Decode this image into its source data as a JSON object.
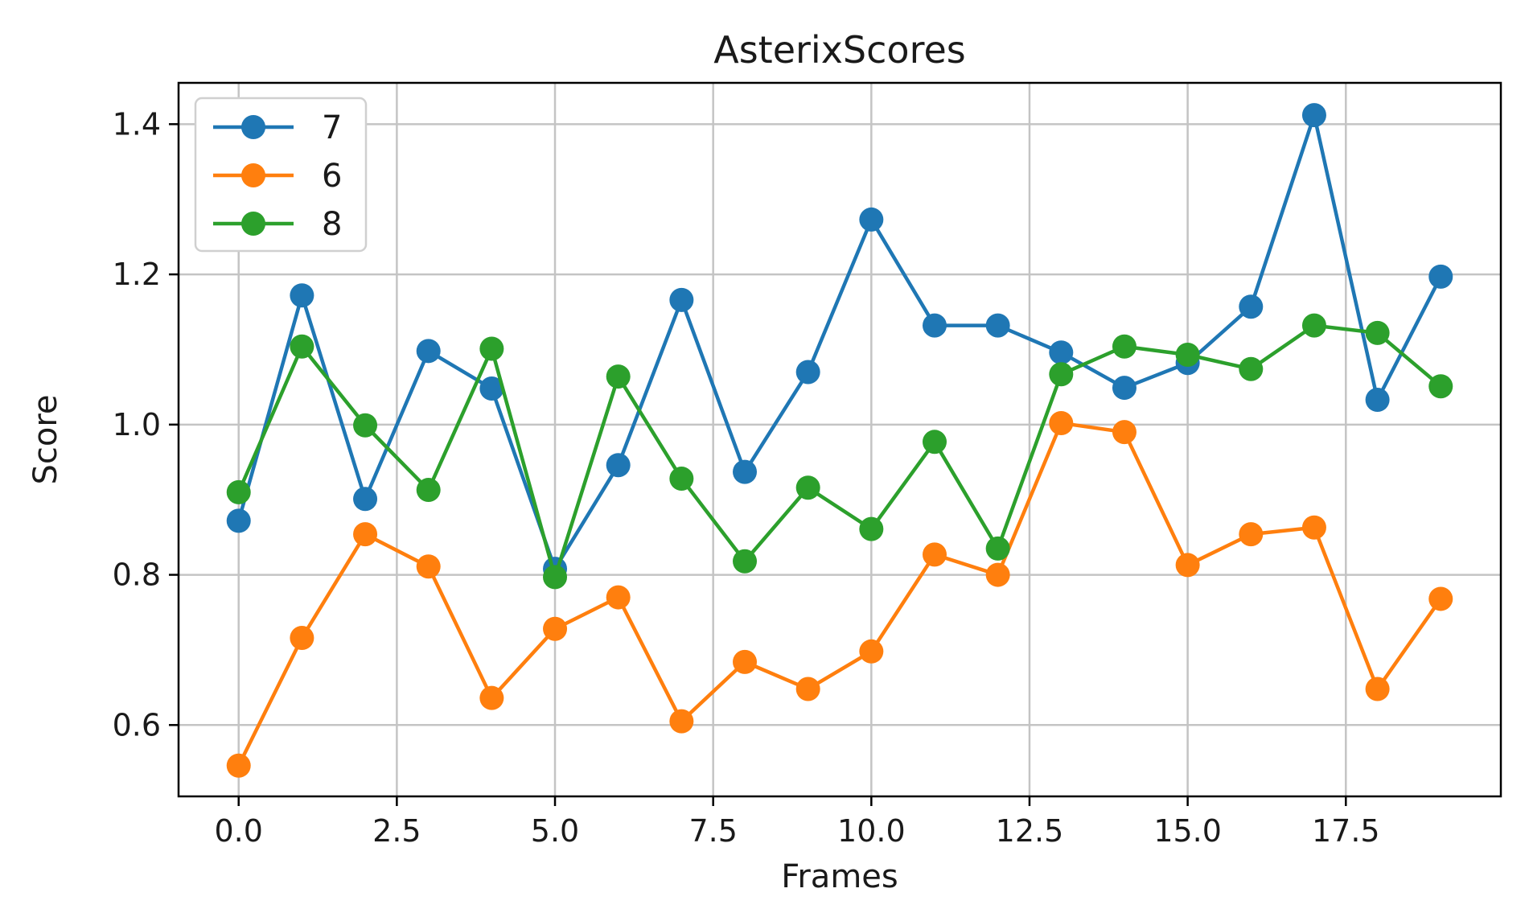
{
  "chart_data": {
    "type": "line",
    "title": "AsterixScores",
    "xlabel": "Frames",
    "ylabel": "Score",
    "xlim": [
      -0.95,
      19.95
    ],
    "ylim": [
      0.505,
      1.455
    ],
    "xticks": [
      0,
      2.5,
      5,
      7.5,
      10,
      12.5,
      15,
      17.5
    ],
    "xtick_labels": [
      "0.0",
      "2.5",
      "5.0",
      "7.5",
      "10.0",
      "12.5",
      "15.0",
      "17.5"
    ],
    "yticks": [
      0.6,
      0.8,
      1.0,
      1.2,
      1.4
    ],
    "ytick_labels": [
      "0.6",
      "0.8",
      "1.0",
      "1.2",
      "1.4"
    ],
    "grid": true,
    "legend_position": "top-left",
    "x": [
      0,
      1,
      2,
      3,
      4,
      5,
      6,
      7,
      8,
      9,
      10,
      11,
      12,
      13,
      14,
      15,
      16,
      17,
      18,
      19
    ],
    "series": [
      {
        "name": "7",
        "color": "#1f77b4",
        "values": [
          0.872,
          1.172,
          0.901,
          1.098,
          1.048,
          0.808,
          0.946,
          1.166,
          0.937,
          1.07,
          1.273,
          1.132,
          1.132,
          1.096,
          1.049,
          1.082,
          1.157,
          1.412,
          1.033,
          1.197
        ]
      },
      {
        "name": "6",
        "color": "#ff7f0e",
        "values": [
          0.546,
          0.716,
          0.854,
          0.811,
          0.636,
          0.728,
          0.77,
          0.605,
          0.684,
          0.648,
          0.698,
          0.827,
          0.8,
          1.002,
          0.99,
          0.813,
          0.854,
          0.863,
          0.648,
          0.768
        ]
      },
      {
        "name": "8",
        "color": "#2ca02c",
        "values": [
          0.91,
          1.104,
          0.999,
          0.913,
          1.101,
          0.797,
          1.064,
          0.928,
          0.818,
          0.916,
          0.861,
          0.977,
          0.835,
          1.067,
          1.104,
          1.093,
          1.074,
          1.132,
          1.122,
          1.051
        ]
      }
    ]
  }
}
